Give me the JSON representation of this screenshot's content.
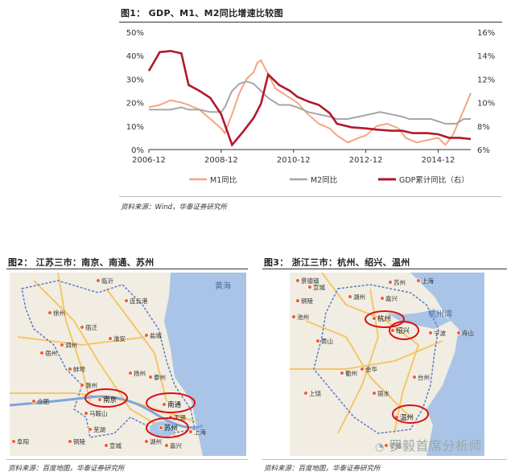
{
  "figure1": {
    "title": "图1： GDP、M1、M2同比增速比较图",
    "source": "资料来源：Wind，华泰证券研究所"
  },
  "figure2": {
    "title": "图2： 江苏三市：南京、南通、苏州",
    "source": "资料来源：百度地图，华泰证券研究所",
    "sea_label": "黄海",
    "cities": [
      "临沂",
      "连云港",
      "徐州",
      "宿迁",
      "淮安",
      "盐城",
      "泰州",
      "扬州",
      "蚌埠",
      "合肥",
      "南京",
      "南通",
      "无锡",
      "苏州",
      "上海",
      "嘉兴",
      "湖州",
      "马鞍山",
      "芜湖",
      "宣城",
      "铜陵",
      "宿州",
      "泗州",
      "阜阳",
      "滁州"
    ],
    "highlighted": [
      "南京",
      "南通",
      "苏州"
    ]
  },
  "figure3": {
    "title": "图3： 浙江三市：杭州、绍兴、温州",
    "source": "资料来源：百度地图，华泰证券研究所",
    "sea_label": "杭州湾",
    "cities": [
      "上海",
      "苏州",
      "嘉兴",
      "湖州",
      "宣城",
      "铜陵",
      "池州",
      "黄山",
      "杭州",
      "绍兴",
      "宁波",
      "舟山",
      "衢州",
      "金华",
      "台州",
      "丽水",
      "温州",
      "上饶",
      "景德镇",
      "宁德"
    ],
    "highlighted": [
      "杭州",
      "绍兴",
      "温州"
    ]
  },
  "watermark": "罗毅首席分析师",
  "chart_data": {
    "type": "line",
    "title": "",
    "x_tick_labels": [
      "2006-12",
      "2008-12",
      "2010-12",
      "2012-12",
      "2014-12"
    ],
    "x_range": [
      2006.9,
      2015.8
    ],
    "y_left_ticks": [
      "0%",
      "10%",
      "20%",
      "30%",
      "40%",
      "50%"
    ],
    "y_left_range": [
      0,
      50
    ],
    "y_right_ticks": [
      "6%",
      "8%",
      "10%",
      "12%",
      "14%",
      "16%"
    ],
    "y_right_range": [
      6,
      16
    ],
    "legend_position": "bottom",
    "grid": false,
    "series": [
      {
        "name": "M1同比",
        "axis": "left",
        "color": "#f4a582",
        "x": [
          2006.9,
          2007.2,
          2007.5,
          2007.8,
          2008.0,
          2008.3,
          2008.6,
          2008.9,
          2009.0,
          2009.2,
          2009.4,
          2009.6,
          2009.8,
          2009.9,
          2010.0,
          2010.2,
          2010.4,
          2010.6,
          2010.8,
          2011.0,
          2011.3,
          2011.6,
          2011.9,
          2012.1,
          2012.4,
          2012.7,
          2012.9,
          2013.2,
          2013.5,
          2013.8,
          2014.0,
          2014.3,
          2014.6,
          2014.9,
          2015.1,
          2015.3,
          2015.5,
          2015.8
        ],
        "y": [
          18,
          19,
          21,
          20,
          19,
          17,
          13,
          9,
          7,
          15,
          24,
          30,
          33,
          37,
          38,
          32,
          26,
          24,
          22,
          20,
          15,
          11,
          9,
          6,
          3,
          5,
          6,
          10,
          11,
          9,
          5,
          3,
          4,
          5,
          2,
          6,
          13,
          24
        ]
      },
      {
        "name": "M2同比",
        "axis": "left",
        "color": "#a6a6a6",
        "x": [
          2006.9,
          2007.2,
          2007.5,
          2007.8,
          2008.0,
          2008.3,
          2008.6,
          2008.9,
          2009.0,
          2009.2,
          2009.4,
          2009.6,
          2009.8,
          2010.0,
          2010.2,
          2010.5,
          2010.8,
          2011.0,
          2011.3,
          2011.6,
          2011.9,
          2012.1,
          2012.4,
          2012.7,
          2013.0,
          2013.3,
          2013.6,
          2013.9,
          2014.1,
          2014.4,
          2014.7,
          2014.9,
          2015.1,
          2015.4,
          2015.6,
          2015.8
        ],
        "y": [
          17,
          17,
          17,
          18,
          17,
          17,
          16,
          16,
          18,
          25,
          28,
          29,
          28,
          25,
          22,
          19,
          19,
          18,
          16,
          15,
          14,
          13,
          13,
          14,
          15,
          16,
          15,
          14,
          13,
          13,
          13,
          12,
          11,
          11,
          13,
          13
        ]
      },
      {
        "name": "GDP累计同比（右）",
        "axis": "right",
        "color": "#b2182b",
        "x": [
          2006.9,
          2007.2,
          2007.5,
          2007.8,
          2008.0,
          2008.3,
          2008.6,
          2008.9,
          2009.2,
          2009.5,
          2009.8,
          2010.0,
          2010.2,
          2010.5,
          2010.8,
          2011.0,
          2011.3,
          2011.6,
          2011.9,
          2012.1,
          2012.5,
          2012.9,
          2013.2,
          2013.6,
          2013.9,
          2014.2,
          2014.6,
          2014.9,
          2015.2,
          2015.5,
          2015.8
        ],
        "y": [
          12.7,
          14.3,
          14.4,
          14.2,
          11.5,
          11.0,
          10.4,
          9.0,
          6.4,
          7.5,
          8.7,
          9.9,
          12.4,
          11.5,
          11.0,
          10.5,
          10.1,
          9.8,
          9.1,
          8.2,
          7.9,
          7.8,
          7.7,
          7.6,
          7.6,
          7.4,
          7.4,
          7.3,
          7.0,
          7.0,
          6.9
        ]
      }
    ]
  }
}
